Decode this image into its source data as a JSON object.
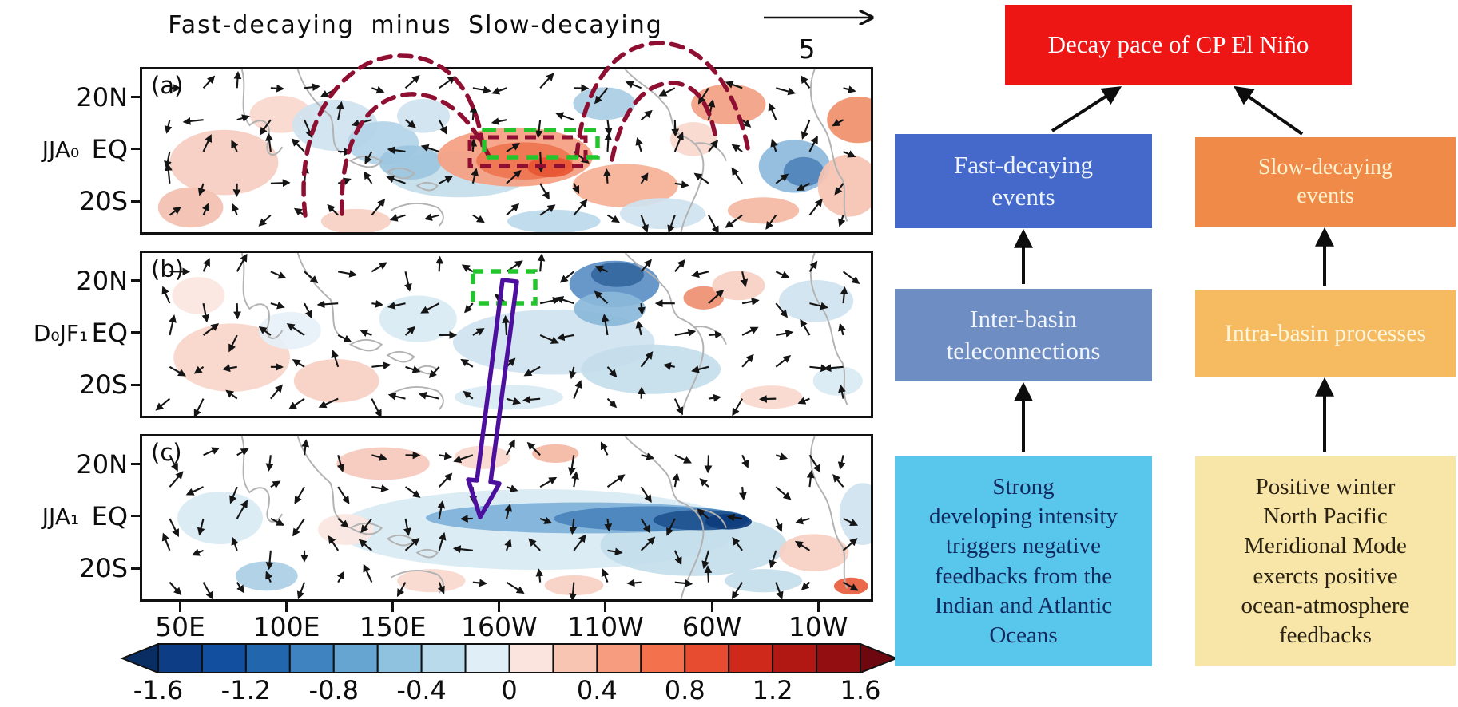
{
  "maps": {
    "title": "Fast-decaying minus Slow-decaying",
    "vector_reference_label": "5",
    "lat_ticks": [
      "20N",
      "EQ",
      "20S"
    ],
    "lon_ticks": [
      "50E",
      "100E",
      "150E",
      "160W",
      "110W",
      "60W",
      "10W"
    ],
    "panels": [
      {
        "letter": "(a)",
        "season": "JJA₀"
      },
      {
        "letter": "(b)",
        "season": "D₀JF₁"
      },
      {
        "letter": "(c)",
        "season": "JJA₁"
      }
    ],
    "colorbar": {
      "tick_labels": [
        "-1.6",
        "-1.2",
        "-0.8",
        "-0.4",
        "0",
        "0.4",
        "0.8",
        "1.2",
        "1.6"
      ],
      "segment_colors": [
        "#0c3d85",
        "#124f9e",
        "#2266ae",
        "#3f83c0",
        "#66a5d2",
        "#8fc2de",
        "#b8daea",
        "#e0eff7",
        "#fbe4de",
        "#f9c5b3",
        "#f79c7f",
        "#f3714c",
        "#e74c31",
        "#cf291c",
        "#b11713",
        "#930e10"
      ],
      "end_colors": [
        "#082e63",
        "#6d0811"
      ]
    },
    "annotation_colors": {
      "maroon_dashed": "#8f0f32",
      "green_dashed": "#22c52b",
      "purple_arrow": "#4d0f9e"
    }
  },
  "flowchart": {
    "nodes": {
      "decay": {
        "label": "Decay pace of CP El Niño",
        "bg": "#ee1515",
        "fg": "#ffffff"
      },
      "fast": {
        "label": "Fast-decaying\nevents",
        "bg": "#4569cb",
        "fg": "#eef3fb"
      },
      "slow": {
        "label": "Slow-decaying\nevents",
        "bg": "#f08a48",
        "fg": "#fdf2cf"
      },
      "inter": {
        "label": "Inter-basin\nteleconnections",
        "bg": "#6e8dc3",
        "fg": "#f2f5fb"
      },
      "intra": {
        "label": "Intra-basin processes",
        "bg": "#f6bb61",
        "fg": "#fdf6dd"
      },
      "strong": {
        "label": "Strong\ndeveloping intensity\ntriggers negative\nfeedbacks from the\nIndian and Atlantic\nOceans",
        "bg": "#59c6ec",
        "fg": "#122a60"
      },
      "pmm": {
        "label": "Positive winter\nNorth Pacific\nMeridional Mode\nexercts positive\nocean-atmosphere\nfeedbacks",
        "bg": "#f8e6a9",
        "fg": "#2a2212"
      }
    },
    "edges": [
      {
        "from": "fast",
        "to": "decay"
      },
      {
        "from": "slow",
        "to": "decay"
      },
      {
        "from": "inter",
        "to": "fast"
      },
      {
        "from": "intra",
        "to": "slow"
      },
      {
        "from": "strong",
        "to": "inter"
      },
      {
        "from": "pmm",
        "to": "intra"
      }
    ]
  },
  "chart_data": {
    "type": "heatmap",
    "title": "Fast-decaying minus Slow-decaying",
    "panels": [
      {
        "label": "(a)",
        "period": "JJA₀"
      },
      {
        "label": "(b)",
        "period": "D₀JF₁"
      },
      {
        "label": "(c)",
        "period": "JJA₁"
      }
    ],
    "x_tick_labels": [
      "50E",
      "100E",
      "150E",
      "160W",
      "110W",
      "60W",
      "10W"
    ],
    "y_tick_labels": [
      "20N",
      "EQ",
      "20S"
    ],
    "colorbar_ticks": [
      -1.6,
      -1.2,
      -0.8,
      -0.4,
      0,
      0.4,
      0.8,
      1.2,
      1.6
    ],
    "colorbar_range": [
      -1.6,
      1.6
    ],
    "vector_reference": 5,
    "legend_position": "bottom",
    "annotations": [
      "maroon dashed arches over Indo-western Pacific and over Atlantic in panel (a)",
      "green and maroon dashed boxes over central equatorial Pacific in panel (a)",
      "green dashed box near 20N / 150W in panel (b)",
      "purple outlined arrow from panel (b) box down to equatorial Pacific in panel (c)"
    ]
  }
}
